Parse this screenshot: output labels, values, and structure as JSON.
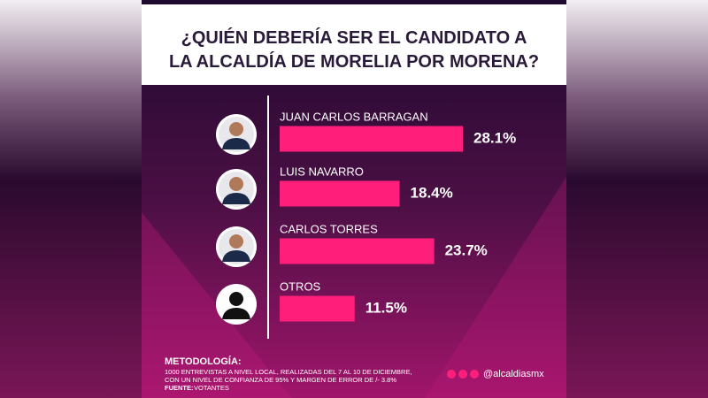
{
  "chart_data": {
    "type": "bar",
    "orientation": "horizontal",
    "title": "¿QUIÉN DEBERÍA SER EL CANDIDATO A LA ALCALDÍA DE MORELIA POR MORENA?",
    "categories": [
      "JUAN CARLOS BARRAGAN",
      "LUIS NAVARRO",
      "CARLOS TORRES",
      "OTROS"
    ],
    "values": [
      28.1,
      18.4,
      23.7,
      11.5
    ],
    "value_labels": [
      "28.1%",
      "18.4%",
      "23.7%",
      "11.5%"
    ],
    "color": "#ff1f7a"
  },
  "methodology": {
    "heading": "METODOLOGÍA:",
    "lines": [
      "1000 ENTREVISTAS A NIVEL LOCAL, REALIZADAS DEL 7 AL 10 DE DICIEMBRE,",
      "CON UN NIVEL DE CONFIANZA DE 95% Y MARGEN DE ERROR DE /- 3.8%"
    ],
    "source_label": "FUENTE:",
    "source": "VOTANTES"
  },
  "handle": "@alcaldiasmx"
}
